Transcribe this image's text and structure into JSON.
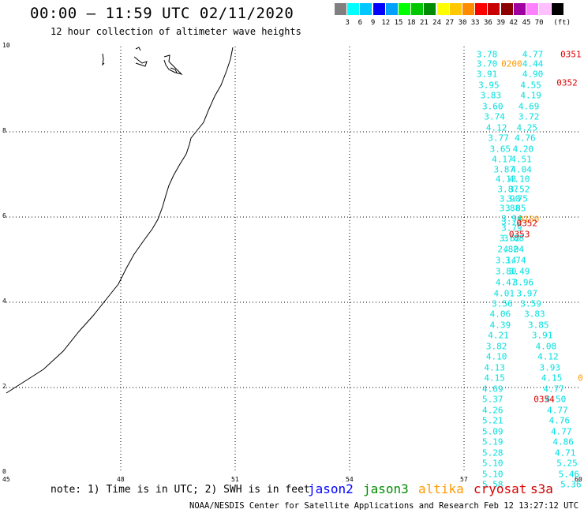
{
  "title": "00:00 – 11:59 UTC 02/11/2020",
  "subtitle": "12 hour collection of altimeter wave heights",
  "scale": {
    "swatches": [
      "#808080",
      "#00ffff",
      "#00c8ff",
      "#0000ff",
      "#00a0ff",
      "#00ff00",
      "#00c800",
      "#008c00",
      "#ffff00",
      "#ffc800",
      "#ff8c00",
      "#ff0000",
      "#c80000",
      "#8b0000",
      "#a000a0",
      "#ff80ff",
      "#ffc0ff",
      "#000000"
    ],
    "labels": [
      "3",
      "6",
      "9",
      "12",
      "15",
      "18",
      "21",
      "24",
      "27",
      "30",
      "33",
      "36",
      "39",
      "42",
      "45",
      "70"
    ],
    "unit": "(ft)"
  },
  "axes": {
    "y_ticks": [
      "0",
      "2",
      "4",
      "6",
      "8",
      "10"
    ],
    "x_ticks": [
      "45",
      "48",
      "51",
      "54",
      "57",
      "60"
    ]
  },
  "chart_data": {
    "type": "scatter",
    "x_range": [
      45,
      60
    ],
    "y_range": [
      0,
      10
    ],
    "grid": true,
    "series": [
      {
        "color": "#00e0e0",
        "points": [
          [
            57.6,
            9.82,
            "3.78"
          ],
          [
            57.6,
            9.6,
            "3.70"
          ],
          [
            57.6,
            9.36,
            "3.91"
          ],
          [
            57.65,
            9.1,
            "3.95"
          ],
          [
            57.7,
            8.85,
            "3.83"
          ],
          [
            57.75,
            8.6,
            "3.60"
          ],
          [
            57.8,
            8.35,
            "3.74"
          ],
          [
            57.85,
            8.1,
            "4.12"
          ],
          [
            57.9,
            7.85,
            "3.77"
          ],
          [
            57.95,
            7.6,
            "3.65"
          ],
          [
            58.0,
            7.36,
            "4.17"
          ],
          [
            58.05,
            7.12,
            "3.87"
          ],
          [
            58.1,
            6.88,
            "4.13"
          ],
          [
            58.15,
            6.65,
            "3.87"
          ],
          [
            58.2,
            6.42,
            "3.90"
          ],
          [
            58.2,
            6.2,
            "3.88"
          ],
          [
            58.25,
            5.97,
            "3.94"
          ],
          [
            58.25,
            5.88,
            "3.72"
          ],
          [
            58.25,
            5.75,
            "3.79"
          ],
          [
            58.2,
            5.5,
            "3.62"
          ],
          [
            58.15,
            5.25,
            "2.82"
          ],
          [
            58.1,
            4.98,
            "3.14"
          ],
          [
            58.1,
            4.72,
            "3.80"
          ],
          [
            58.1,
            4.47,
            "4.47"
          ],
          [
            58.05,
            4.21,
            "4.01"
          ],
          [
            58.0,
            3.97,
            "3.56"
          ],
          [
            57.95,
            3.72,
            "4.06"
          ],
          [
            57.95,
            3.47,
            "4.39"
          ],
          [
            57.9,
            3.22,
            "4.21"
          ],
          [
            57.85,
            2.97,
            "3.82"
          ],
          [
            57.85,
            2.72,
            "4.10"
          ],
          [
            57.8,
            2.47,
            "4.13"
          ],
          [
            57.8,
            2.22,
            "4.15"
          ],
          [
            57.75,
            1.97,
            "4.69"
          ],
          [
            57.75,
            1.72,
            "5.37"
          ],
          [
            57.75,
            1.47,
            "4.26"
          ],
          [
            57.75,
            1.22,
            "5.21"
          ],
          [
            57.75,
            0.97,
            "5.09"
          ],
          [
            57.75,
            0.72,
            "5.19"
          ],
          [
            57.75,
            0.47,
            "5.28"
          ],
          [
            57.75,
            0.22,
            "5.10"
          ],
          [
            57.75,
            -0.03,
            "5.10"
          ],
          [
            57.75,
            -0.28,
            "5.58"
          ],
          [
            58.8,
            9.82,
            "4.77"
          ],
          [
            58.8,
            9.6,
            "4.44"
          ],
          [
            58.8,
            9.36,
            "4.90"
          ],
          [
            58.75,
            9.1,
            "4.55"
          ],
          [
            58.75,
            8.85,
            "4.19"
          ],
          [
            58.7,
            8.6,
            "4.69"
          ],
          [
            58.7,
            8.35,
            "3.72"
          ],
          [
            58.65,
            8.1,
            "4.25"
          ],
          [
            58.6,
            7.85,
            "4.76"
          ],
          [
            58.55,
            7.6,
            "4.20"
          ],
          [
            58.5,
            7.36,
            "4.51"
          ],
          [
            58.5,
            7.12,
            "4.04"
          ],
          [
            58.45,
            6.88,
            "4.10"
          ],
          [
            58.45,
            6.65,
            "3.52"
          ],
          [
            58.4,
            6.42,
            "3.75"
          ],
          [
            58.35,
            6.2,
            "3.85"
          ],
          [
            58.3,
            5.5,
            "3.88"
          ],
          [
            58.3,
            5.25,
            "4.04"
          ],
          [
            58.35,
            4.98,
            "3.74"
          ],
          [
            58.45,
            4.72,
            "3.49"
          ],
          [
            58.55,
            4.47,
            "3.96"
          ],
          [
            58.65,
            4.21,
            "3.97"
          ],
          [
            58.75,
            3.97,
            "3.59"
          ],
          [
            58.85,
            3.72,
            "3.83"
          ],
          [
            58.95,
            3.47,
            "3.85"
          ],
          [
            59.05,
            3.22,
            "3.91"
          ],
          [
            59.15,
            2.97,
            "4.08"
          ],
          [
            59.2,
            2.72,
            "4.12"
          ],
          [
            59.25,
            2.47,
            "3.93"
          ],
          [
            59.3,
            2.22,
            "4.15"
          ],
          [
            59.35,
            1.97,
            "4.77"
          ],
          [
            59.4,
            1.72,
            "4.50"
          ],
          [
            59.45,
            1.47,
            "4.77"
          ],
          [
            59.5,
            1.22,
            "4.76"
          ],
          [
            59.55,
            0.97,
            "4.77"
          ],
          [
            59.6,
            0.72,
            "4.86"
          ],
          [
            59.65,
            0.47,
            "4.71"
          ],
          [
            59.7,
            0.22,
            "5.25"
          ],
          [
            59.75,
            -0.03,
            "5.46"
          ],
          [
            59.8,
            -0.28,
            "5.36"
          ]
        ]
      },
      {
        "color": "#ff9900",
        "points": [
          [
            58.25,
            9.6,
            "0200"
          ],
          [
            58.7,
            5.95,
            "0150"
          ],
          [
            60.05,
            2.22,
            "0"
          ]
        ]
      },
      {
        "color": "#dd0000",
        "points": [
          [
            59.8,
            9.82,
            "0351"
          ],
          [
            59.7,
            9.15,
            "0352"
          ],
          [
            58.65,
            5.85,
            "0352"
          ],
          [
            58.45,
            5.6,
            "0353"
          ],
          [
            59.1,
            1.72,
            "0354"
          ]
        ]
      }
    ]
  },
  "note": "note: 1) Time is in UTC; 2) SWH is in feet",
  "satellites": [
    {
      "name": "jason2",
      "color": "#0000ff"
    },
    {
      "name": "jason3",
      "color": "#008c00"
    },
    {
      "name": "altika",
      "color": "#ff9900"
    },
    {
      "name": "cryosat",
      "color": "#dd0000"
    },
    {
      "name": "s3a",
      "color": "#cc0000"
    }
  ],
  "credit": "NOAA/NESDIS Center for Satellite Applications and Research   Feb 12 13:27:12 UTC 2020"
}
